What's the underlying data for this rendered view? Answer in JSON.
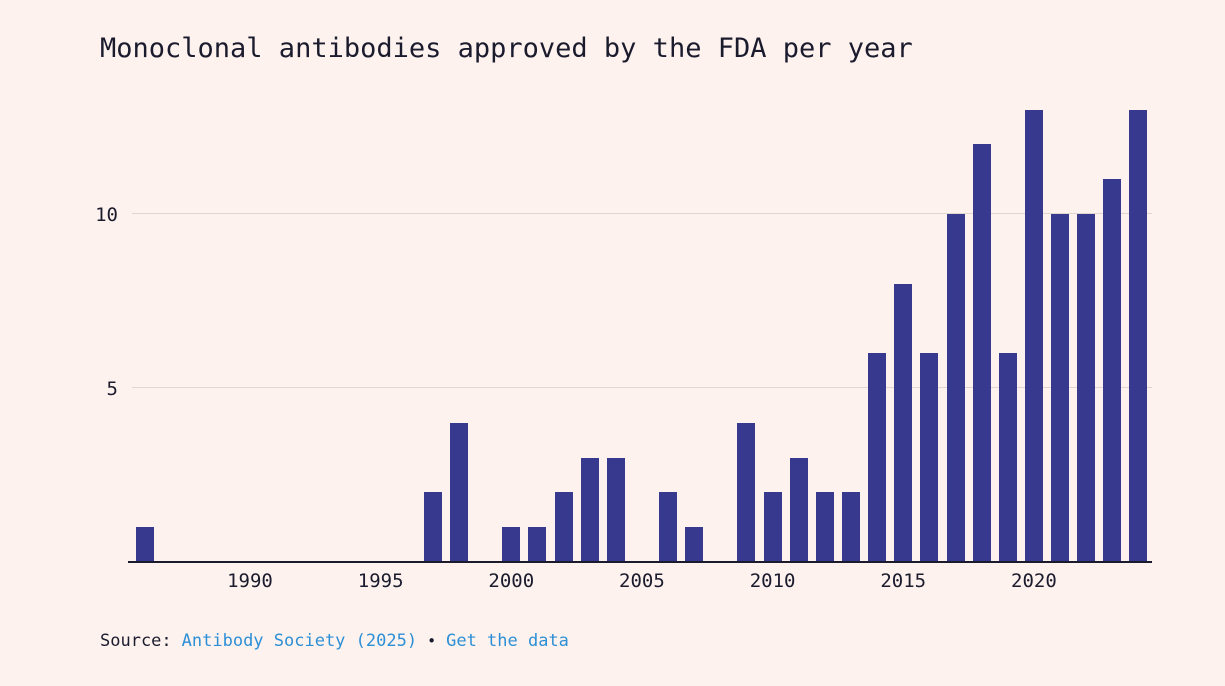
{
  "page": {
    "background_color": "#fdf2ee"
  },
  "chart_data": {
    "type": "bar",
    "title": "Monoclonal antibodies approved by the FDA per year",
    "xlabel": "",
    "ylabel": "",
    "x": [
      1986,
      1987,
      1988,
      1989,
      1990,
      1991,
      1992,
      1993,
      1994,
      1995,
      1996,
      1997,
      1998,
      1999,
      2000,
      2001,
      2002,
      2003,
      2004,
      2005,
      2006,
      2007,
      2008,
      2009,
      2010,
      2011,
      2012,
      2013,
      2014,
      2015,
      2016,
      2017,
      2018,
      2019,
      2020,
      2021,
      2022,
      2023,
      2024
    ],
    "values": [
      1,
      0,
      0,
      0,
      0,
      0,
      0,
      0,
      0,
      0,
      0,
      2,
      4,
      0,
      1,
      1,
      2,
      3,
      3,
      0,
      2,
      1,
      0,
      4,
      2,
      3,
      2,
      2,
      6,
      8,
      6,
      10,
      12,
      6,
      13,
      10,
      10,
      11,
      13
    ],
    "x_ticks": [
      1990,
      1995,
      2000,
      2005,
      2010,
      2015,
      2020
    ],
    "y_gridlines": [
      5,
      10
    ],
    "ylim": [
      0,
      13
    ],
    "xlim": [
      1985.5,
      2024.5
    ],
    "bar_color": "#36398e",
    "grid": "horizontal-only",
    "legend": "none"
  },
  "footer": {
    "source_label": "Source:",
    "source_link": "Antibody Society (2025)",
    "separator": "•",
    "data_link": "Get the data"
  }
}
